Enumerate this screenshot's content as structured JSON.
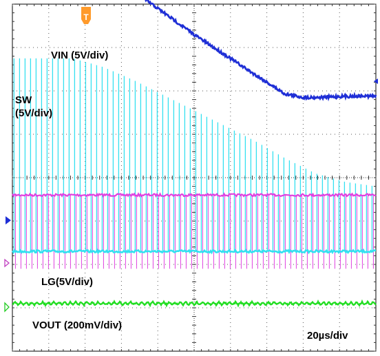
{
  "chart_data": {
    "type": "line",
    "title": "",
    "grid": true,
    "grid_divisions": {
      "x": 10,
      "y": 8
    },
    "timebase": "20µs/div",
    "trigger_marker": "T",
    "series": [
      {
        "name": "VIN (5V/div)",
        "color": "#1f2fd6",
        "x_div": [
          0,
          0.5,
          1.0,
          1.5,
          2.0,
          2.5,
          3.0,
          3.5,
          4.0,
          4.5,
          5.0,
          5.5,
          6.0,
          6.5,
          7.0,
          7.5,
          8.0,
          8.5,
          9.0,
          9.5,
          10.0
        ],
        "y_div": [
          5.35,
          5.35,
          5.35,
          5.35,
          5.1,
          4.8,
          4.5,
          4.2,
          3.9,
          3.6,
          3.3,
          3.02,
          2.75,
          2.47,
          2.2,
          1.93,
          1.85,
          1.85,
          1.87,
          1.88,
          1.88
        ]
      },
      {
        "name": "SW (5V/div)",
        "color": "#33e0f0",
        "pulse_count": 66,
        "x_div_range": [
          0,
          10
        ],
        "peak_y_div": [
          2.75,
          2.75,
          2.75,
          2.55,
          2.25,
          1.9,
          1.55,
          1.2,
          0.85,
          0.45,
          0.1,
          -0.1,
          -0.2
        ],
        "baseline_y_div": -1.7
      },
      {
        "name": "",
        "color": "#e040e0",
        "x_div_range": [
          0,
          10
        ],
        "y_div": -0.4,
        "dip_y_div": -2.1
      },
      {
        "name": "LG(5V/div)",
        "color": "#33e0f0",
        "x_div_range": [
          0,
          10
        ],
        "y_div": -1.7
      },
      {
        "name": "VOUT (200mV/div)",
        "color": "#22dd22",
        "x_div_range": [
          0,
          10
        ],
        "y_div": -2.9,
        "ripple_div": 0.06
      }
    ],
    "annotations": [
      "VIN (5V/div)",
      "SW",
      "(5V/div)",
      "LG(5V/div)",
      "VOUT (200mV/div)",
      "20µs/div"
    ]
  }
}
